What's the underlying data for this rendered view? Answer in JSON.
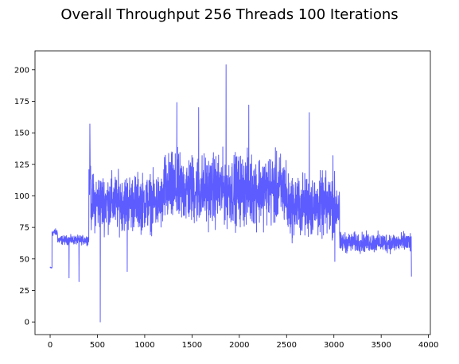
{
  "chart_data": {
    "type": "line",
    "title": "Overall Throughput 256 Threads 100 Iterations",
    "xlabel": "",
    "ylabel": "",
    "xlim": [
      -160,
      4020
    ],
    "ylim": [
      -10,
      215
    ],
    "x_ticks": [
      0,
      500,
      1000,
      1500,
      2000,
      2500,
      3000,
      3500,
      4000
    ],
    "y_ticks": [
      0,
      25,
      50,
      75,
      100,
      125,
      150,
      175,
      200
    ],
    "x_tick_labels": [
      "0",
      "500",
      "1000",
      "1500",
      "2000",
      "2500",
      "3000",
      "3500",
      "4000"
    ],
    "y_tick_labels": [
      "0",
      "25",
      "50",
      "75",
      "100",
      "125",
      "150",
      "175",
      "200"
    ],
    "grid": false,
    "legend": "none",
    "line_color": "#5c5cff",
    "series": [
      {
        "name": "",
        "segments": [
          {
            "x": [
              0,
              20
            ],
            "base": 43,
            "amp": 1
          },
          {
            "x": [
              20,
              80
            ],
            "base": 71,
            "amp": 4
          },
          {
            "x": [
              80,
              410
            ],
            "base": 65,
            "amp": 5
          },
          {
            "x": [
              410,
              430
            ],
            "base": 115,
            "amp": 30
          },
          {
            "x": [
              430,
              1200
            ],
            "base": 95,
            "amp": 32
          },
          {
            "x": [
              1200,
              2500
            ],
            "base": 105,
            "amp": 40
          },
          {
            "x": [
              2500,
              3060
            ],
            "base": 92,
            "amp": 35
          },
          {
            "x": [
              3060,
              3820
            ],
            "base": 63,
            "amp": 11
          }
        ],
        "spikes": [
          {
            "x": 0,
            "y": 43
          },
          {
            "x": 200,
            "y": 35
          },
          {
            "x": 305,
            "y": 32
          },
          {
            "x": 420,
            "y": 157
          },
          {
            "x": 530,
            "y": 0
          },
          {
            "x": 815,
            "y": 40
          },
          {
            "x": 1340,
            "y": 174
          },
          {
            "x": 1570,
            "y": 170
          },
          {
            "x": 1860,
            "y": 204
          },
          {
            "x": 2100,
            "y": 172
          },
          {
            "x": 2740,
            "y": 166
          },
          {
            "x": 2990,
            "y": 132
          },
          {
            "x": 3010,
            "y": 48
          },
          {
            "x": 3820,
            "y": 36
          }
        ]
      }
    ]
  }
}
